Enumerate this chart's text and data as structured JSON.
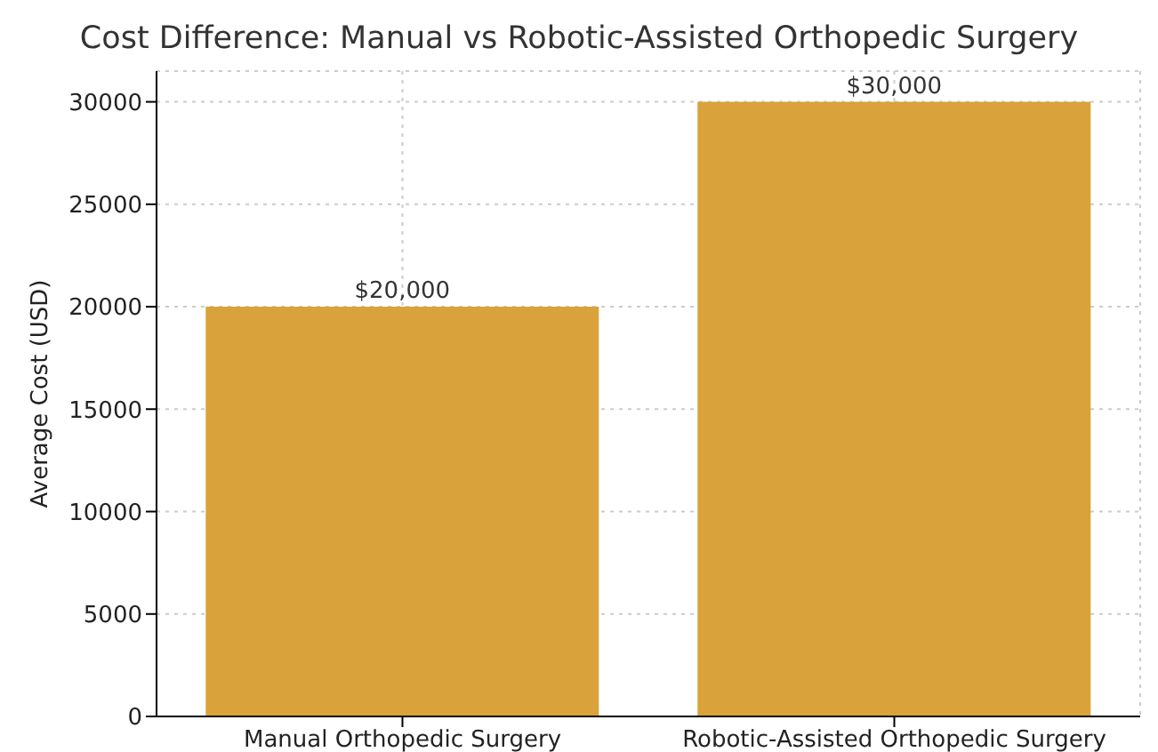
{
  "chart_data": {
    "type": "bar",
    "title": "Cost Difference: Manual vs Robotic-Assisted Orthopedic Surgery",
    "ylabel": "Average Cost (USD)",
    "categories": [
      "Manual Orthopedic Surgery",
      "Robotic-Assisted Orthopedic Surgery"
    ],
    "values": [
      20000,
      30000
    ],
    "color": "#d9a23a",
    "value_labels": [
      "$20,000",
      "$30,000"
    ],
    "ylim": [
      0,
      31500
    ],
    "yticks": [
      0,
      5000,
      10000,
      15000,
      20000,
      25000,
      30000
    ],
    "grid": true
  }
}
